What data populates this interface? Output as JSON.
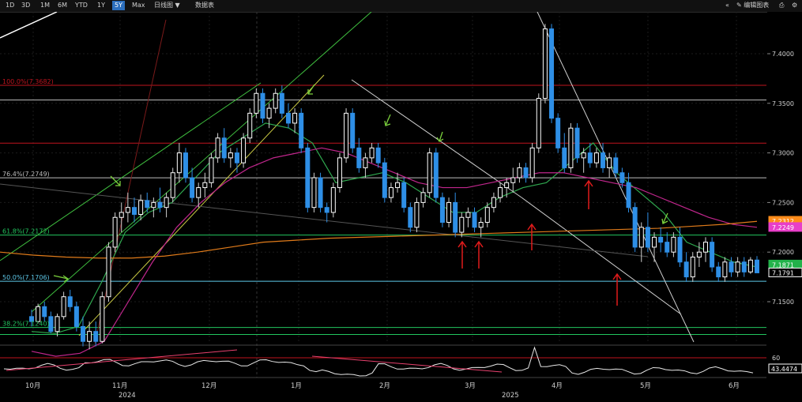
{
  "toolbar": {
    "ranges": [
      "1D",
      "3D",
      "1M",
      "6M",
      "YTD",
      "1Y",
      "5Y",
      "Max"
    ],
    "active": "5Y",
    "chart_type": "日线图",
    "data_table": "数据表",
    "edit_label": "编辑图表"
  },
  "chart_data": {
    "type": "candlestick",
    "y_axis": {
      "min": 7.1,
      "max": 7.45,
      "ticks": [
        "7.4000",
        "7.3500",
        "7.3000",
        "7.2500",
        "7.2000",
        "7.1500"
      ],
      "tick_values": [
        7.4,
        7.35,
        7.3,
        7.25,
        7.2,
        7.15
      ]
    },
    "x_axis": {
      "month_labels": [
        "10月",
        "11月",
        "12月",
        "1月",
        "2月",
        "3月",
        "4月",
        "5月",
        "6月"
      ],
      "year_labels": [
        "2024",
        "2025"
      ]
    },
    "fib_levels": [
      {
        "label": "100.0%(7.3682)",
        "value": 7.3682,
        "color": "#c0141e"
      },
      {
        "label": "76.4%(7.2749)",
        "value": 7.2749,
        "color": "#bbbbbb"
      },
      {
        "label": "61.8%(7.2172)",
        "value": 7.2172,
        "color": "#22c55e"
      },
      {
        "label": "50.0%(7.1706)",
        "value": 7.1706,
        "color": "#5ec8e8"
      },
      {
        "label": "38.2%(7.1240)",
        "value": 7.124,
        "color": "#22c55e"
      }
    ],
    "horizontal_lines": [
      {
        "value": 7.3533,
        "color": "#bbbbbb"
      },
      {
        "value": 7.3098,
        "color": "#c0141e"
      },
      {
        "value": 7.117,
        "color": "#22c55e"
      }
    ],
    "price_tags": [
      {
        "text": "7.2312",
        "value": 7.2312,
        "bg": "#ff8c1a"
      },
      {
        "text": "7.2249",
        "value": 7.2249,
        "bg": "#e83ec8"
      },
      {
        "text": "7.1871",
        "value": 7.1871,
        "bg": "#22b24a"
      },
      {
        "text": "7.1791",
        "value": 7.1791,
        "bg": "#000000",
        "border": "#ffffff"
      }
    ],
    "ohlc": [
      [
        7.135,
        7.142,
        7.125,
        7.13
      ],
      [
        7.13,
        7.148,
        7.128,
        7.145
      ],
      [
        7.145,
        7.15,
        7.13,
        7.135
      ],
      [
        7.135,
        7.14,
        7.118,
        7.12
      ],
      [
        7.12,
        7.138,
        7.115,
        7.135
      ],
      [
        7.135,
        7.16,
        7.132,
        7.155
      ],
      [
        7.155,
        7.162,
        7.14,
        7.145
      ],
      [
        7.145,
        7.15,
        7.12,
        7.125
      ],
      [
        7.125,
        7.135,
        7.105,
        7.11
      ],
      [
        7.11,
        7.13,
        7.102,
        7.12
      ],
      [
        7.12,
        7.13,
        7.105,
        7.11
      ],
      [
        7.11,
        7.16,
        7.108,
        7.155
      ],
      [
        7.155,
        7.21,
        7.15,
        7.205
      ],
      [
        7.205,
        7.24,
        7.2,
        7.235
      ],
      [
        7.235,
        7.25,
        7.22,
        7.24
      ],
      [
        7.24,
        7.26,
        7.23,
        7.245
      ],
      [
        7.245,
        7.255,
        7.23,
        7.238
      ],
      [
        7.238,
        7.258,
        7.232,
        7.252
      ],
      [
        7.252,
        7.26,
        7.24,
        7.245
      ],
      [
        7.245,
        7.255,
        7.235,
        7.25
      ],
      [
        7.25,
        7.265,
        7.24,
        7.245
      ],
      [
        7.245,
        7.26,
        7.235,
        7.255
      ],
      [
        7.255,
        7.285,
        7.25,
        7.28
      ],
      [
        7.28,
        7.31,
        7.27,
        7.3
      ],
      [
        7.3,
        7.305,
        7.27,
        7.275
      ],
      [
        7.275,
        7.285,
        7.25,
        7.255
      ],
      [
        7.255,
        7.27,
        7.245,
        7.265
      ],
      [
        7.265,
        7.28,
        7.255,
        7.27
      ],
      [
        7.27,
        7.3,
        7.265,
        7.295
      ],
      [
        7.295,
        7.32,
        7.29,
        7.315
      ],
      [
        7.315,
        7.325,
        7.29,
        7.295
      ],
      [
        7.295,
        7.305,
        7.285,
        7.3
      ],
      [
        7.3,
        7.305,
        7.28,
        7.29
      ],
      [
        7.29,
        7.32,
        7.285,
        7.315
      ],
      [
        7.315,
        7.345,
        7.31,
        7.34
      ],
      [
        7.34,
        7.365,
        7.335,
        7.36
      ],
      [
        7.36,
        7.365,
        7.33,
        7.335
      ],
      [
        7.335,
        7.35,
        7.325,
        7.345
      ],
      [
        7.345,
        7.365,
        7.34,
        7.36
      ],
      [
        7.36,
        7.368,
        7.335,
        7.34
      ],
      [
        7.34,
        7.35,
        7.325,
        7.33
      ],
      [
        7.33,
        7.345,
        7.32,
        7.34
      ],
      [
        7.34,
        7.345,
        7.3,
        7.305
      ],
      [
        7.305,
        7.31,
        7.24,
        7.245
      ],
      [
        7.245,
        7.28,
        7.24,
        7.275
      ],
      [
        7.275,
        7.28,
        7.24,
        7.245
      ],
      [
        7.245,
        7.25,
        7.23,
        7.24
      ],
      [
        7.24,
        7.27,
        7.235,
        7.265
      ],
      [
        7.265,
        7.3,
        7.26,
        7.295
      ],
      [
        7.295,
        7.345,
        7.29,
        7.34
      ],
      [
        7.34,
        7.345,
        7.3,
        7.305
      ],
      [
        7.305,
        7.315,
        7.28,
        7.285
      ],
      [
        7.285,
        7.3,
        7.275,
        7.295
      ],
      [
        7.295,
        7.31,
        7.29,
        7.305
      ],
      [
        7.305,
        7.31,
        7.285,
        7.29
      ],
      [
        7.29,
        7.295,
        7.25,
        7.255
      ],
      [
        7.255,
        7.27,
        7.25,
        7.265
      ],
      [
        7.265,
        7.28,
        7.26,
        7.27
      ],
      [
        7.27,
        7.275,
        7.24,
        7.245
      ],
      [
        7.245,
        7.25,
        7.22,
        7.225
      ],
      [
        7.225,
        7.255,
        7.22,
        7.25
      ],
      [
        7.25,
        7.265,
        7.245,
        7.26
      ],
      [
        7.26,
        7.305,
        7.255,
        7.3
      ],
      [
        7.3,
        7.305,
        7.25,
        7.255
      ],
      [
        7.255,
        7.26,
        7.225,
        7.23
      ],
      [
        7.23,
        7.255,
        7.225,
        7.25
      ],
      [
        7.25,
        7.26,
        7.215,
        7.22
      ],
      [
        7.22,
        7.24,
        7.215,
        7.235
      ],
      [
        7.235,
        7.245,
        7.225,
        7.24
      ],
      [
        7.24,
        7.245,
        7.22,
        7.225
      ],
      [
        7.225,
        7.235,
        7.215,
        7.23
      ],
      [
        7.23,
        7.25,
        7.225,
        7.245
      ],
      [
        7.245,
        7.26,
        7.24,
        7.255
      ],
      [
        7.255,
        7.27,
        7.25,
        7.265
      ],
      [
        7.265,
        7.275,
        7.255,
        7.27
      ],
      [
        7.27,
        7.285,
        7.26,
        7.275
      ],
      [
        7.275,
        7.29,
        7.27,
        7.285
      ],
      [
        7.285,
        7.29,
        7.27,
        7.275
      ],
      [
        7.275,
        7.31,
        7.27,
        7.305
      ],
      [
        7.305,
        7.36,
        7.3,
        7.355
      ],
      [
        7.355,
        7.43,
        7.35,
        7.425
      ],
      [
        7.425,
        7.43,
        7.33,
        7.335
      ],
      [
        7.335,
        7.34,
        7.3,
        7.305
      ],
      [
        7.305,
        7.32,
        7.28,
        7.285
      ],
      [
        7.285,
        7.33,
        7.28,
        7.325
      ],
      [
        7.325,
        7.33,
        7.29,
        7.295
      ],
      [
        7.295,
        7.305,
        7.28,
        7.3
      ],
      [
        7.3,
        7.31,
        7.285,
        7.29
      ],
      [
        7.29,
        7.305,
        7.285,
        7.3
      ],
      [
        7.3,
        7.31,
        7.28,
        7.285
      ],
      [
        7.285,
        7.3,
        7.275,
        7.295
      ],
      [
        7.295,
        7.3,
        7.275,
        7.28
      ],
      [
        7.28,
        7.285,
        7.265,
        7.27
      ],
      [
        7.27,
        7.28,
        7.24,
        7.245
      ],
      [
        7.245,
        7.25,
        7.2,
        7.205
      ],
      [
        7.205,
        7.23,
        7.19,
        7.225
      ],
      [
        7.225,
        7.24,
        7.2,
        7.205
      ],
      [
        7.205,
        7.22,
        7.19,
        7.215
      ],
      [
        7.215,
        7.225,
        7.2,
        7.21
      ],
      [
        7.21,
        7.22,
        7.195,
        7.2
      ],
      [
        7.2,
        7.22,
        7.195,
        7.215
      ],
      [
        7.215,
        7.225,
        7.185,
        7.19
      ],
      [
        7.19,
        7.2,
        7.17,
        7.175
      ],
      [
        7.175,
        7.2,
        7.17,
        7.195
      ],
      [
        7.195,
        7.21,
        7.185,
        7.2
      ],
      [
        7.2,
        7.215,
        7.19,
        7.21
      ],
      [
        7.21,
        7.215,
        7.18,
        7.185
      ],
      [
        7.185,
        7.19,
        7.17,
        7.175
      ],
      [
        7.175,
        7.195,
        7.17,
        7.19
      ],
      [
        7.19,
        7.195,
        7.175,
        7.18
      ],
      [
        7.18,
        7.195,
        7.175,
        7.19
      ],
      [
        7.19,
        7.195,
        7.175,
        7.18
      ],
      [
        7.18,
        7.195,
        7.178,
        7.192
      ],
      [
        7.192,
        7.196,
        7.18,
        7.1791
      ]
    ],
    "moving_averages": [
      {
        "name": "ma-short",
        "color": "#2fa84f",
        "values": [
          7.12,
          7.118,
          7.125,
          7.17,
          7.22,
          7.24,
          7.25,
          7.275,
          7.3,
          7.315,
          7.33,
          7.325,
          7.31,
          7.27,
          7.275,
          7.28,
          7.27,
          7.255,
          7.24,
          7.24,
          7.255,
          7.265,
          7.27,
          7.29,
          7.31,
          7.28,
          7.26,
          7.24,
          7.21,
          7.2,
          7.19,
          7.185
        ]
      },
      {
        "name": "ma-mid",
        "color": "#c0268c",
        "values": [
          7.1,
          7.095,
          7.098,
          7.11,
          7.15,
          7.19,
          7.225,
          7.25,
          7.27,
          7.285,
          7.295,
          7.3,
          7.305,
          7.3,
          7.29,
          7.28,
          7.27,
          7.265,
          7.265,
          7.27,
          7.275,
          7.28,
          7.28,
          7.275,
          7.27,
          7.265,
          7.255,
          7.245,
          7.235,
          7.228,
          7.225
        ]
      },
      {
        "name": "ma-long",
        "color": "#e07b1a",
        "values": [
          7.2,
          7.197,
          7.195,
          7.194,
          7.194,
          7.196,
          7.2,
          7.205,
          7.21,
          7.212,
          7.214,
          7.215,
          7.216,
          7.217,
          7.218,
          7.219,
          7.22,
          7.221,
          7.222,
          7.223,
          7.224,
          7.226,
          7.228,
          7.231
        ]
      }
    ],
    "indicator": {
      "ticks": [
        "60"
      ],
      "last_value": "43.4474"
    }
  }
}
